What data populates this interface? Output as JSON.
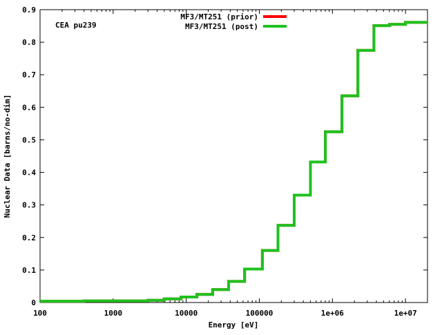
{
  "chart_data": {
    "type": "line",
    "step": true,
    "annotation": "CEA pu239",
    "xlabel": "Energy [eV]",
    "ylabel": "Nuclear Data [barns/no-dim]",
    "xscale": "log",
    "xlim": [
      100,
      20000000
    ],
    "ylim": [
      0,
      0.9
    ],
    "xticks": [
      100,
      1000,
      10000,
      100000,
      1000000,
      10000000
    ],
    "xtick_labels": [
      "100",
      "1000",
      "10000",
      "100000",
      "1e+06",
      "1e+07"
    ],
    "yticks": [
      0,
      0.1,
      0.2,
      0.3,
      0.4,
      0.5,
      0.6,
      0.7,
      0.8,
      0.9
    ],
    "ytick_labels": [
      "0",
      "0.1",
      "0.2",
      "0.3",
      "0.4",
      "0.5",
      "0.6",
      "0.7",
      "0.8",
      "0.9"
    ],
    "grid": false,
    "legend_position": "top-center",
    "series": [
      {
        "name": "MF3/MT251 (prior)",
        "color": "#ff0000",
        "x": [
          100,
          400,
          3000,
          5000,
          8500,
          14000,
          23000,
          38000,
          63000,
          110000,
          180000,
          300000,
          500000,
          800000,
          1350000,
          2230000,
          3700000,
          6070000,
          10000000,
          20000000
        ],
        "y": [
          0.004,
          0.005,
          0.007,
          0.011,
          0.017,
          0.025,
          0.04,
          0.065,
          0.103,
          0.16,
          0.237,
          0.33,
          0.432,
          0.525,
          0.635,
          0.775,
          0.851,
          0.855,
          0.861,
          0.861
        ]
      },
      {
        "name": "MF3/MT251 (post)",
        "color": "#1ec21e",
        "x": [
          100,
          400,
          3000,
          5000,
          8500,
          14000,
          23000,
          38000,
          63000,
          110000,
          180000,
          300000,
          500000,
          800000,
          1350000,
          2230000,
          3700000,
          6070000,
          10000000,
          20000000
        ],
        "y": [
          0.004,
          0.005,
          0.007,
          0.011,
          0.017,
          0.025,
          0.04,
          0.065,
          0.103,
          0.16,
          0.237,
          0.33,
          0.432,
          0.525,
          0.635,
          0.775,
          0.851,
          0.855,
          0.861,
          0.861
        ]
      }
    ]
  }
}
